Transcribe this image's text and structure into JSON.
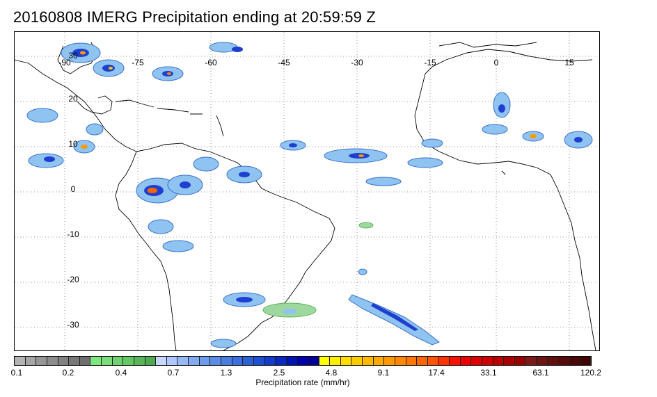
{
  "title": "20160808 IMERG Precipitation ending at 20:59:59 Z",
  "map": {
    "longitude_labels": [
      "-90",
      "-75",
      "-60",
      "-45",
      "-30",
      "-15",
      "0",
      "15"
    ],
    "latitude_labels": [
      "30",
      "20",
      "10",
      "0",
      "-10",
      "-20",
      "-30"
    ],
    "grid": "dotted",
    "region": "Tropical Atlantic, South America and West Africa"
  },
  "colorbar": {
    "colors": [
      "#b4b4b4",
      "#a5a5a5",
      "#969696",
      "#8c8c8c",
      "#828282",
      "#787878",
      "#6e6e6e",
      "#7fe67f",
      "#78dc78",
      "#6ed26e",
      "#64c864",
      "#5ab45a",
      "#50aa50",
      "#c8d7ff",
      "#afc8ff",
      "#96b9f5",
      "#82aaf0",
      "#6e9beb",
      "#5a8ce6",
      "#4b7de1",
      "#3c6edc",
      "#2d5fd7",
      "#1e50d2",
      "#143cc8",
      "#0a28be",
      "#0014b4",
      "#0000aa",
      "#000096",
      "#ffff00",
      "#ffee00",
      "#ffdd00",
      "#ffcc00",
      "#ffbb00",
      "#ffaa00",
      "#ff9900",
      "#ff8800",
      "#ff7700",
      "#ff6600",
      "#ff5500",
      "#ff3300",
      "#ff1100",
      "#ee0000",
      "#dd0000",
      "#cc0000",
      "#bb0000",
      "#aa0000",
      "#990000",
      "#7a1a1a",
      "#6e1414",
      "#621010",
      "#560c0c",
      "#4a0808",
      "#400505"
    ],
    "tick_labels": [
      "0.1",
      "0.2",
      "0.4",
      "0.7",
      "1.3",
      "2.5",
      "4.8",
      "9.1",
      "17.4",
      "33.1",
      "63.1",
      "120.2"
    ],
    "label": "Precipitation rate (mm/hr)"
  }
}
